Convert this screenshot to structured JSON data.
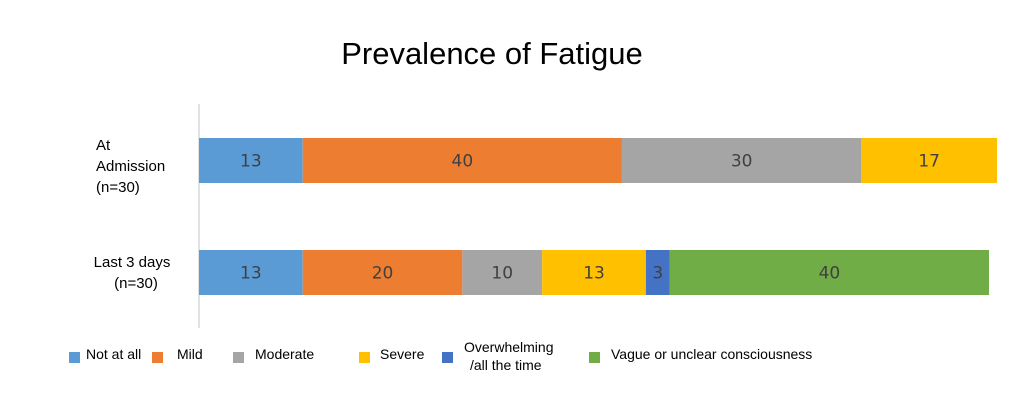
{
  "chart_data": {
    "type": "bar",
    "orientation": "horizontal",
    "stacked": true,
    "title": "Prevalence of Fatigue",
    "xlabel": "",
    "ylabel": "",
    "xlim": [
      0,
      100
    ],
    "grid": false,
    "legend_position": "bottom",
    "categories": [
      [
        "At",
        "Admission",
        "(n=30)"
      ],
      [
        "Last 3 days",
        "(n=30)"
      ]
    ],
    "series": [
      {
        "name": "Not at all",
        "color": "#5B9BD5",
        "values": [
          13,
          13
        ]
      },
      {
        "name": "Mild",
        "color": "#ED7D31",
        "values": [
          40,
          20
        ]
      },
      {
        "name": "Moderate",
        "color": "#A5A5A5",
        "values": [
          30,
          10
        ]
      },
      {
        "name": "Severe",
        "color": "#FFC000",
        "values": [
          17,
          13
        ]
      },
      {
        "name": [
          "Overwhelming",
          "/all the time"
        ],
        "color": "#4472C4",
        "values": [
          0,
          3
        ]
      },
      {
        "name": "Vague or unclear consciousness",
        "color": "#70AD47",
        "values": [
          0,
          40
        ]
      }
    ]
  }
}
